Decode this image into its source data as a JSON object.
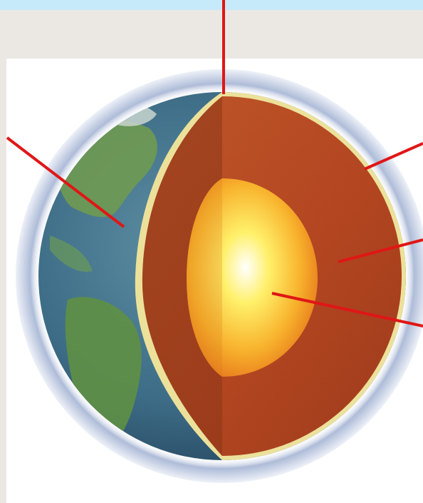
{
  "diagram": {
    "layers": [
      {
        "name": "atmosphere",
        "color": "#b9c4dc"
      },
      {
        "name": "crust",
        "color": "#e9dc92"
      },
      {
        "name": "mantle",
        "color": "#b8431f"
      },
      {
        "name": "core",
        "color": "#f3a12c"
      }
    ],
    "surface": {
      "ocean": "#3f6f8a",
      "land": "#6b9a4d"
    },
    "pointer_color": "#e01616",
    "pointer_count": 5
  }
}
